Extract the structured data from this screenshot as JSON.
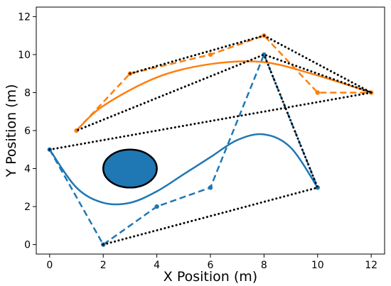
{
  "chart_data": {
    "type": "line",
    "title": "",
    "xlabel": "X Position (m)",
    "ylabel": "Y Position (m)",
    "xlim": [
      -0.5,
      12.5
    ],
    "ylim": [
      -0.5,
      12.5
    ],
    "xticks": [
      0,
      2,
      4,
      6,
      8,
      10,
      12
    ],
    "yticks": [
      0,
      2,
      4,
      6,
      8,
      10,
      12
    ],
    "grid": false,
    "legend": "none",
    "obstacle": {
      "shape": "ellipse",
      "center": [
        3,
        4
      ],
      "rx": 1,
      "ry": 1,
      "fill": "#1f77b4",
      "edge": "#000000"
    },
    "series": [
      {
        "style": "dashed",
        "color": "#1f77b4",
        "marker": true,
        "x": [
          0,
          2,
          4,
          6,
          8,
          10
        ],
        "y": [
          5,
          0,
          2,
          3,
          10,
          3
        ]
      },
      {
        "style": "dashed",
        "color": "#ff7f0e",
        "marker": true,
        "x": [
          1,
          3,
          6,
          8,
          10,
          12
        ],
        "y": [
          6,
          9,
          10,
          11,
          8,
          8
        ]
      },
      {
        "style": "solid",
        "color": "#1f77b4",
        "x": [
          0,
          1,
          2,
          3,
          4,
          5,
          6,
          7,
          8,
          9,
          10
        ],
        "y": [
          5,
          3,
          2.2,
          2.2,
          2.8,
          3.7,
          4.6,
          5.5,
          5.8,
          5.1,
          3
        ]
      },
      {
        "style": "solid",
        "color": "#ff7f0e",
        "x": [
          1,
          2,
          4,
          6,
          8,
          10,
          12
        ],
        "y": [
          6,
          7.3,
          8.8,
          9.5,
          9.6,
          8.9,
          8
        ]
      },
      {
        "style": "dotted",
        "color": "#000000",
        "x": [
          0,
          12,
          8,
          1
        ],
        "y": [
          5,
          8,
          10,
          6
        ]
      },
      {
        "style": "dotted",
        "color": "#000000",
        "x": [
          2,
          10,
          8
        ],
        "y": [
          0,
          3,
          10
        ]
      },
      {
        "style": "dotted",
        "color": "#000000",
        "x": [
          3,
          8,
          12
        ],
        "y": [
          9,
          11,
          8
        ]
      }
    ]
  }
}
